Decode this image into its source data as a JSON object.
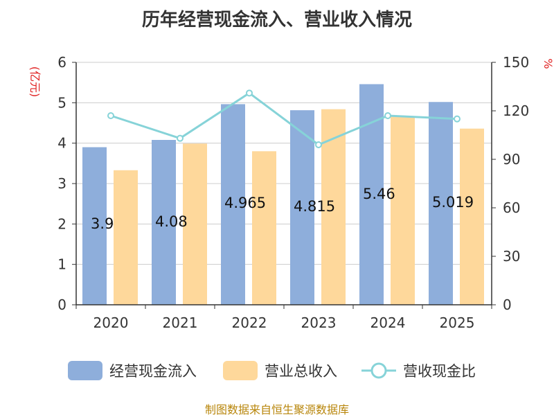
{
  "source": "制图数据来自恒生聚源数据库",
  "chart_data": {
    "type": "bar",
    "title": "历年经营现金流入、营业收入情况",
    "categories": [
      "2020",
      "2021",
      "2022",
      "2023",
      "2024",
      "2025"
    ],
    "left_unit": "(亿元)",
    "right_unit": "%",
    "ylim": [
      0,
      6
    ],
    "yticks": [
      0,
      1,
      2,
      3,
      4,
      5,
      6
    ],
    "y2lim": [
      0,
      150
    ],
    "y2ticks": [
      0,
      30,
      60,
      90,
      120,
      150
    ],
    "grid": true,
    "legend_position": "bottom",
    "series": [
      {
        "name": "经营现金流入",
        "type": "bar",
        "axis": "left",
        "color": "#8eaedb",
        "values": [
          3.9,
          4.08,
          4.965,
          4.815,
          5.46,
          5.019
        ],
        "labels": [
          "3.9",
          "4.08",
          "4.965",
          "4.815",
          "5.46",
          "5.019"
        ]
      },
      {
        "name": "营业总收入",
        "type": "bar",
        "axis": "left",
        "color": "#fed89b",
        "values": [
          3.33,
          3.99,
          3.8,
          4.84,
          4.67,
          4.36
        ]
      },
      {
        "name": "营收现金比",
        "type": "line",
        "axis": "right",
        "color": "#86d3d8",
        "values": [
          117,
          103,
          131,
          99,
          117,
          115
        ]
      }
    ]
  }
}
